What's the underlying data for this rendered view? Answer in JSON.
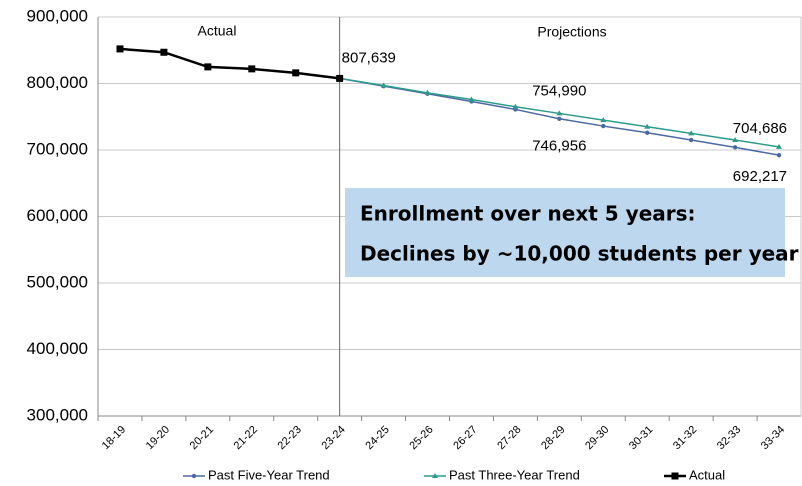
{
  "chart_data": {
    "type": "line",
    "categories": [
      "18-19",
      "19-20",
      "20-21",
      "21-22",
      "22-23",
      "23-24",
      "24-25",
      "25-26",
      "26-27",
      "27-28",
      "28-29",
      "29-30",
      "30-31",
      "31-32",
      "32-33",
      "33-34"
    ],
    "ylim": [
      300000,
      900000
    ],
    "yticks": [
      {
        "value": 300000,
        "label": "300,000"
      },
      {
        "value": 400000,
        "label": "400,000"
      },
      {
        "value": 500000,
        "label": "500,000"
      },
      {
        "value": 600000,
        "label": "600,000"
      },
      {
        "value": 700000,
        "label": "700,000"
      },
      {
        "value": 800000,
        "label": "800,000"
      },
      {
        "value": 900000,
        "label": "900,000"
      }
    ],
    "grid": true,
    "legend": "bottom",
    "annotations": [
      "Actual",
      "Projections",
      "Enrollment over next 5 years:",
      "Declines by ~10,000 students per year"
    ],
    "series": [
      {
        "name": "Past Five-Year Trend",
        "color": "#4a6aa5",
        "marker": "circle",
        "values": [
          null,
          null,
          null,
          null,
          null,
          807639,
          796000,
          784600,
          773000,
          761000,
          746956,
          736000,
          726000,
          715000,
          704000,
          692217
        ],
        "value_labels": [
          null,
          null,
          null,
          null,
          null,
          null,
          null,
          null,
          null,
          null,
          "746,956",
          null,
          null,
          null,
          null,
          "692,217"
        ]
      },
      {
        "name": "Past Three-Year Trend",
        "color": "#2e9b8a",
        "marker": "triangle",
        "values": [
          null,
          null,
          null,
          null,
          null,
          807639,
          797000,
          786000,
          776000,
          765000,
          754990,
          745000,
          735000,
          725000,
          715000,
          704686
        ],
        "value_labels": [
          null,
          null,
          null,
          null,
          null,
          null,
          null,
          null,
          null,
          null,
          "754,990",
          null,
          null,
          null,
          null,
          "704,686"
        ]
      },
      {
        "name": "Actual",
        "color": "#000000",
        "marker": "square",
        "values": [
          852000,
          847000,
          825000,
          822000,
          816000,
          807639,
          null,
          null,
          null,
          null,
          null,
          null,
          null,
          null,
          null,
          null
        ],
        "value_labels": [
          null,
          null,
          null,
          null,
          null,
          "807,639",
          null,
          null,
          null,
          null,
          null,
          null,
          null,
          null,
          null,
          null
        ]
      }
    ]
  }
}
